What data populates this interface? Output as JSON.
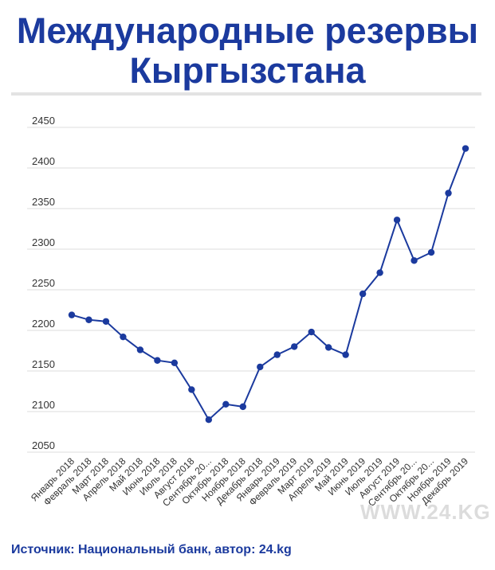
{
  "title": {
    "line1": "Международные резервы",
    "line2": "Кыргызстана"
  },
  "source": "Источник: Национальный банк, автор: 24.kg",
  "watermark": "WWW.24.KG",
  "colors": {
    "title": "#1b3a9e",
    "line": "#1b3a9e",
    "grid": "#dddddd"
  },
  "chart_data": {
    "type": "line",
    "title": "Международные резервы Кыргызстана",
    "xlabel": "",
    "ylabel": "",
    "ylim": [
      2050,
      2450
    ],
    "yticks": [
      2050,
      2100,
      2150,
      2200,
      2250,
      2300,
      2350,
      2400,
      2450
    ],
    "grid": true,
    "categories": [
      "Январь 2018",
      "Февраль 2018",
      "Март 2018",
      "Апрель 2018",
      "Май 2018",
      "Июнь 2018",
      "Июль 2018",
      "Август 2018",
      "Сентябрь 20...",
      "Октябрь 2018",
      "Ноябрь 2018",
      "Декабрь 2018",
      "Январь 2019",
      "Февраль 2019",
      "Март 2019",
      "Апрель 2019",
      "Май 2019",
      "Июнь 2019",
      "Июль 2019",
      "Август 2019",
      "Сентябрь 20...",
      "Октябрь 20...",
      "Ноябрь 2019",
      "Декабрь 2019"
    ],
    "series": [
      {
        "values": [
          2219,
          2213,
          2211,
          2192,
          2176,
          2163,
          2160,
          2127,
          2090,
          2109,
          2106,
          2155,
          2170,
          2180,
          2198,
          2179,
          2170,
          2245,
          2271,
          2336,
          2286,
          2296,
          2369,
          2424
        ]
      }
    ]
  }
}
